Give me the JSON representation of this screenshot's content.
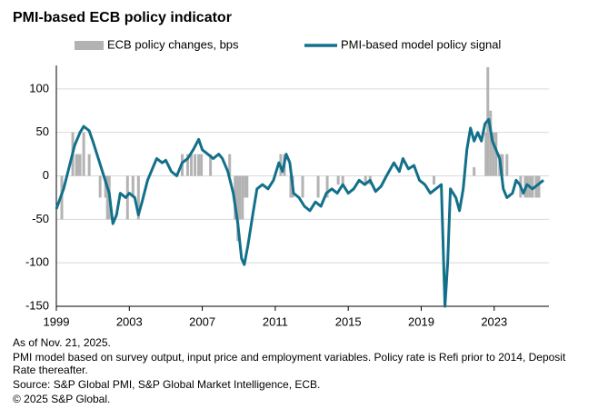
{
  "chart_data": {
    "type": "combo",
    "title": "PMI-based ECB policy indicator",
    "xlim": [
      1999,
      2026
    ],
    "xticks": [
      1999,
      2003,
      2007,
      2011,
      2015,
      2019,
      2023
    ],
    "ylim": [
      -150,
      127
    ],
    "yticks": [
      -150,
      -100,
      -50,
      0,
      50,
      100
    ],
    "grid": true,
    "series": [
      {
        "name": "ECB policy changes, bps",
        "type": "bar",
        "color": "#b3b3b3",
        "x": [
          1999.3,
          1999.9,
          2000.1,
          2000.2,
          2000.3,
          2000.5,
          2000.8,
          2001.4,
          2001.7,
          2001.8,
          2001.9,
          2002.9,
          2003.2,
          2003.5,
          2005.9,
          2006.2,
          2006.4,
          2006.6,
          2006.8,
          2006.95,
          2007.45,
          2008.5,
          2008.8,
          2008.9,
          2008.95,
          2009.05,
          2009.2,
          2009.35,
          2009.45,
          2011.3,
          2011.5,
          2011.85,
          2011.95,
          2012.5,
          2013.35,
          2013.85,
          2014.45,
          2014.7,
          2015.95,
          2016.2,
          2019.7,
          2021.9,
          2022.55,
          2022.65,
          2022.8,
          2022.95,
          2023.1,
          2023.3,
          2023.45,
          2023.7,
          2024.45,
          2024.7,
          2024.8,
          2024.95,
          2025.1,
          2025.3,
          2025.45
        ],
        "values": [
          -50,
          50,
          25,
          25,
          25,
          50,
          25,
          -25,
          -25,
          -50,
          -50,
          -50,
          -25,
          -50,
          25,
          25,
          25,
          25,
          25,
          25,
          25,
          25,
          -50,
          -50,
          -75,
          -50,
          -50,
          -25,
          -25,
          25,
          25,
          -25,
          -25,
          -25,
          -25,
          -25,
          -10,
          -10,
          -10,
          -10,
          -10,
          10,
          50,
          125,
          75,
          50,
          50,
          25,
          25,
          25,
          -25,
          -25,
          -25,
          -25,
          -25,
          -25,
          -25
        ]
      },
      {
        "name": "PMI-based model policy signal",
        "type": "line",
        "color": "#13708a",
        "x": [
          1999.0,
          1999.4,
          1999.7,
          2000.0,
          2000.3,
          2000.5,
          2000.8,
          2001.0,
          2001.3,
          2001.6,
          2001.9,
          2002.1,
          2002.3,
          2002.5,
          2002.8,
          2003.0,
          2003.3,
          2003.5,
          2003.7,
          2004.0,
          2004.3,
          2004.5,
          2004.8,
          2005.0,
          2005.3,
          2005.6,
          2005.9,
          2006.2,
          2006.5,
          2006.8,
          2007.0,
          2007.3,
          2007.6,
          2007.9,
          2008.1,
          2008.4,
          2008.7,
          2008.95,
          2009.15,
          2009.3,
          2009.5,
          2009.8,
          2010.0,
          2010.3,
          2010.6,
          2010.9,
          2011.2,
          2011.4,
          2011.6,
          2011.8,
          2012.0,
          2012.3,
          2012.6,
          2012.9,
          2013.2,
          2013.5,
          2013.8,
          2014.1,
          2014.4,
          2014.7,
          2015.0,
          2015.3,
          2015.6,
          2015.9,
          2016.2,
          2016.5,
          2016.8,
          2017.1,
          2017.5,
          2017.8,
          2018.0,
          2018.3,
          2018.6,
          2018.9,
          2019.2,
          2019.5,
          2019.8,
          2020.1,
          2020.3,
          2020.45,
          2020.6,
          2020.9,
          2021.1,
          2021.3,
          2021.5,
          2021.7,
          2021.9,
          2022.1,
          2022.3,
          2022.5,
          2022.7,
          2022.9,
          2023.1,
          2023.3,
          2023.5,
          2023.7,
          2024.0,
          2024.2,
          2024.4,
          2024.6,
          2024.8,
          2025.1,
          2025.4,
          2025.7
        ],
        "values": [
          -38,
          -15,
          10,
          35,
          50,
          57,
          52,
          40,
          20,
          0,
          -20,
          -55,
          -45,
          -20,
          -25,
          -20,
          -25,
          -45,
          -30,
          -5,
          10,
          20,
          15,
          18,
          5,
          0,
          15,
          20,
          30,
          42,
          30,
          25,
          20,
          25,
          20,
          5,
          -20,
          -55,
          -95,
          -102,
          -80,
          -40,
          -15,
          -10,
          -15,
          -5,
          15,
          5,
          25,
          15,
          -20,
          -25,
          -35,
          -40,
          -30,
          -35,
          -20,
          -15,
          -20,
          -10,
          -20,
          -15,
          -5,
          -10,
          -5,
          -18,
          -12,
          0,
          15,
          5,
          20,
          8,
          12,
          -5,
          -10,
          -20,
          -15,
          -10,
          -150,
          -100,
          -15,
          -25,
          -40,
          -15,
          30,
          55,
          40,
          50,
          40,
          60,
          65,
          40,
          30,
          20,
          -15,
          -25,
          -20,
          -5,
          -10,
          -20,
          -10,
          -15,
          -10,
          -5
        ]
      }
    ]
  },
  "notes": [
    "As of Nov. 21, 2025.",
    "PMI model based on survey output, input price and employment variables. Policy rate is Refi prior to 2014, Deposit Rate thereafter.",
    "Source: S&P Global PMI, S&P Global Market Intelligence, ECB.",
    "© 2025 S&P Global."
  ]
}
